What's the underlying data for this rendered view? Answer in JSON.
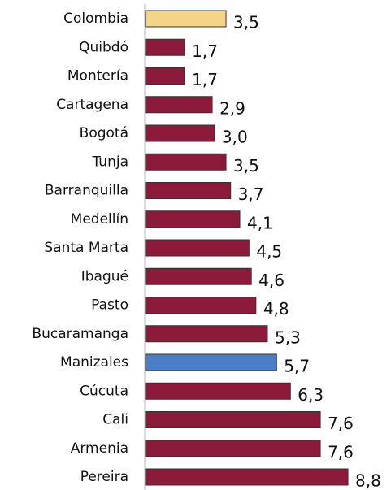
{
  "chart_data": {
    "type": "bar",
    "orientation": "horizontal",
    "categories": [
      "Colombia",
      "Quibdó",
      "Montería",
      "Cartagena",
      "Bogotá",
      "Tunja",
      "Barranquilla",
      "Medellín",
      "Santa Marta",
      "Ibagué",
      "Pasto",
      "Bucaramanga",
      "Manizales",
      "Cúcuta",
      "Cali",
      "Armenia",
      "Pereira"
    ],
    "values": [
      3.5,
      1.7,
      1.7,
      2.9,
      3.0,
      3.5,
      3.7,
      4.1,
      4.5,
      4.6,
      4.8,
      5.3,
      5.7,
      6.3,
      7.6,
      7.6,
      8.8
    ],
    "value_labels": [
      "3,5",
      "1,7",
      "1,7",
      "2,9",
      "3,0",
      "3,5",
      "3,7",
      "4,1",
      "4,5",
      "4,6",
      "4,8",
      "5,3",
      "5,7",
      "6,3",
      "7,6",
      "7,6",
      "8,8"
    ],
    "colors": [
      "#f5d488",
      "#8c1b3b",
      "#8c1b3b",
      "#8c1b3b",
      "#8c1b3b",
      "#8c1b3b",
      "#8c1b3b",
      "#8c1b3b",
      "#8c1b3b",
      "#8c1b3b",
      "#8c1b3b",
      "#8c1b3b",
      "#4a7fc6",
      "#8c1b3b",
      "#8c1b3b",
      "#8c1b3b",
      "#8c1b3b"
    ]
  }
}
